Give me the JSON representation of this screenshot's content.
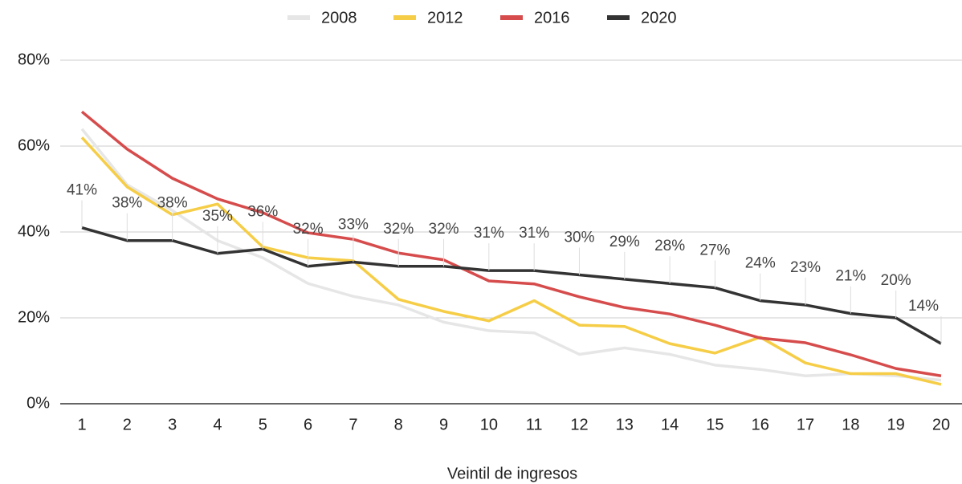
{
  "chart_data": {
    "type": "line",
    "x_label": "Veintil de ingresos",
    "x": [
      1,
      2,
      3,
      4,
      5,
      6,
      7,
      8,
      9,
      10,
      11,
      12,
      13,
      14,
      15,
      16,
      17,
      18,
      19,
      20
    ],
    "xlim": [
      1,
      20
    ],
    "xticks": [
      1,
      2,
      3,
      4,
      5,
      6,
      7,
      8,
      9,
      10,
      11,
      12,
      13,
      14,
      15,
      16,
      17,
      18,
      19,
      20
    ],
    "ylim": [
      0,
      80
    ],
    "yticks": [
      {
        "value": 0,
        "label": "0%"
      },
      {
        "value": 20,
        "label": "20%"
      },
      {
        "value": 40,
        "label": "40%"
      },
      {
        "value": 60,
        "label": "60%"
      },
      {
        "value": 80,
        "label": "80%"
      }
    ],
    "grid": true,
    "legend": "top",
    "series": [
      {
        "name": "2008",
        "color": "#e6e6e6",
        "values": [
          64,
          51,
          45,
          38,
          34,
          28,
          25,
          23,
          19,
          17,
          16.5,
          11.5,
          13,
          11.5,
          9,
          8,
          6.5,
          7,
          6.5,
          5.5
        ]
      },
      {
        "name": "2012",
        "color": "#f6cd46",
        "values": [
          62,
          50.5,
          44,
          46.5,
          36.5,
          34,
          33.3,
          24.3,
          21.5,
          19.3,
          24,
          18.3,
          18,
          14,
          11.8,
          15.5,
          9.5,
          7,
          7,
          4.5
        ]
      },
      {
        "name": "2016",
        "color": "#d64c4c",
        "values": [
          68,
          59.3,
          52.5,
          47.7,
          44.5,
          39.8,
          38.3,
          35.1,
          33.5,
          28.6,
          27.9,
          24.9,
          22.4,
          20.9,
          18.3,
          15.3,
          14.2,
          11.4,
          8.2,
          6.5
        ]
      },
      {
        "name": "2020",
        "color": "#333333",
        "values": [
          41,
          38,
          38,
          35,
          36,
          32,
          33,
          32,
          32,
          31,
          31,
          30,
          29,
          28,
          27,
          24,
          23,
          21,
          20,
          14
        ],
        "value_labels": [
          "41%",
          "38%",
          "38%",
          "35%",
          "36%",
          "32%",
          "33%",
          "32%",
          "32%",
          "31%",
          "31%",
          "30%",
          "29%",
          "28%",
          "27%",
          "24%",
          "23%",
          "21%",
          "20%",
          "14%"
        ]
      }
    ]
  }
}
